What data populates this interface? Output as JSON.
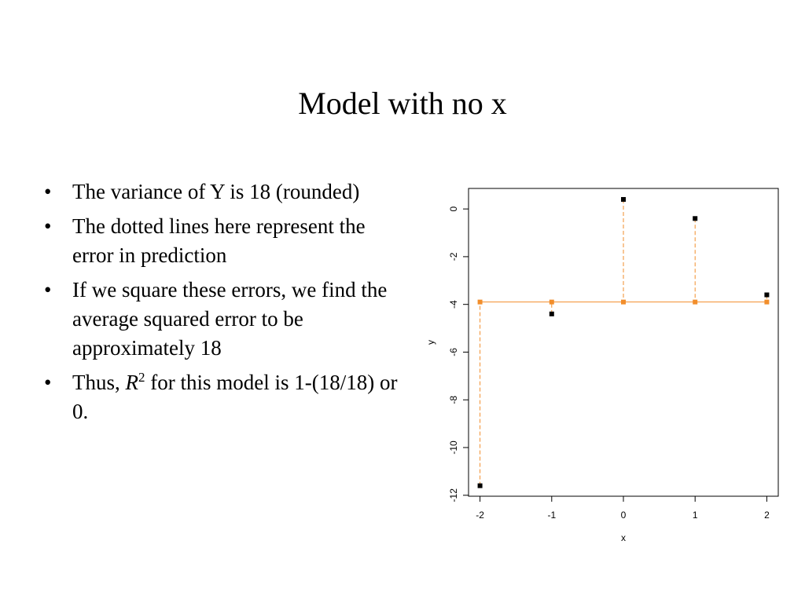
{
  "title": "Model with no x",
  "bullets": [
    [
      "The variance of Y is 18 (rounded)"
    ],
    [
      "The dotted lines here represent the error in prediction"
    ],
    [
      "If we square these errors, we find the average squared error to be approximately 18"
    ],
    [
      "Thus, ",
      "R",
      "2",
      " for this model is 1-(18/18) or 0."
    ]
  ],
  "chart_data": {
    "type": "scatter",
    "x_label": "x",
    "y_label": "y",
    "x": [
      -2,
      -1,
      0,
      1,
      2
    ],
    "values": [
      -11.6,
      -4.4,
      0.4,
      -0.4,
      -3.6
    ],
    "color": "#000000",
    "fitted_values": [
      -3.9,
      -3.9,
      -3.9,
      -3.9,
      -3.9
    ],
    "fitted_color": "#f28e2b",
    "xlim": [
      -2.16,
      2.16
    ],
    "xticks": [
      -2,
      -1,
      0,
      1,
      2
    ],
    "ylim": [
      -12.04,
      0.86
    ],
    "yticks": [
      0,
      -2,
      -4,
      -6,
      -8,
      -10,
      -12
    ]
  }
}
